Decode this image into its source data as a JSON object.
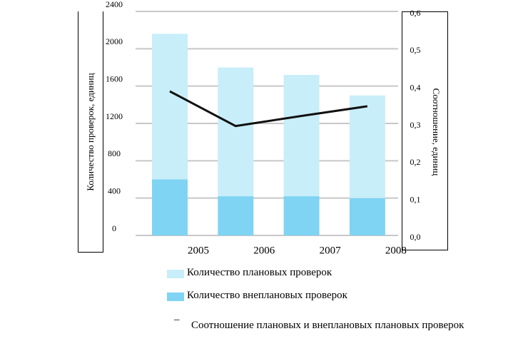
{
  "chart_data": {
    "type": "bar",
    "y_label": "Количество проверок, единиц",
    "y2_label": "Соотношение, единиц",
    "categories": [
      "2005",
      "2006",
      "2007",
      "2008"
    ],
    "series": [
      {
        "name": "Количество плановых проверок",
        "color": "#c8eefa",
        "values": [
          1560,
          1380,
          1300,
          1100
        ]
      },
      {
        "name": "Количество внеплановых проверок",
        "color": "#7fd4f3",
        "values": [
          600,
          420,
          420,
          400
        ]
      },
      {
        "name": "Соотношение плановых и внеплановых плановых проверок",
        "color": "#111111",
        "axis": "y2",
        "type": "line",
        "values": [
          0.386,
          0.293,
          0.32,
          0.346
        ]
      }
    ],
    "ylim": [
      0,
      2400
    ],
    "yticks": [
      0,
      400,
      800,
      1200,
      1600,
      2000,
      2400
    ],
    "y2lim": [
      0,
      0.6
    ],
    "y2ticks": [
      {
        "value": 0,
        "label": "0,0"
      },
      {
        "value": 0.1,
        "label": "0,1"
      },
      {
        "value": 0.2,
        "label": "0,2"
      },
      {
        "value": 0.3,
        "label": "0,3"
      },
      {
        "value": 0.4,
        "label": "0,4"
      },
      {
        "value": 0.5,
        "label": "0,5"
      },
      {
        "value": 0.6,
        "label": "0,6"
      }
    ],
    "grid": true
  }
}
